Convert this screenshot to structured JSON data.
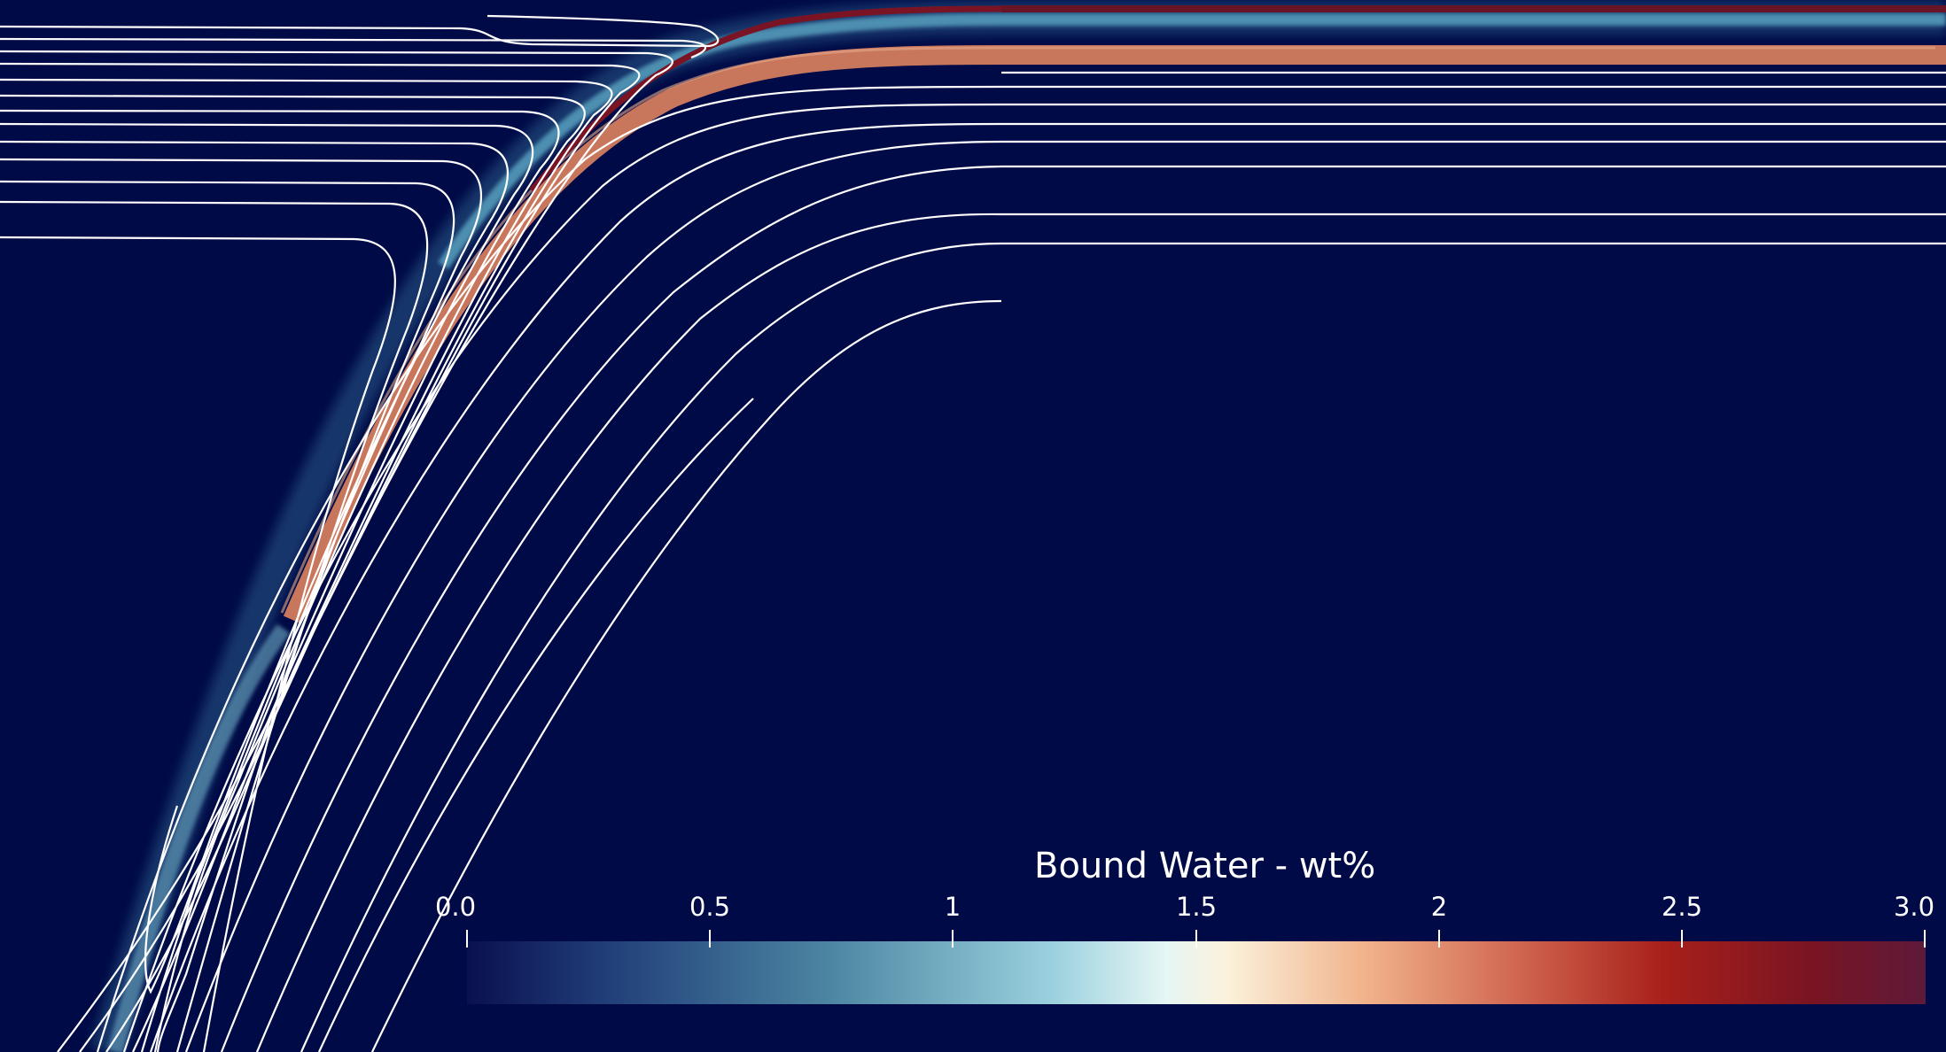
{
  "figure": {
    "background_color": "#000a46",
    "field_name": "Bound Water - wt%"
  },
  "colorbar": {
    "title": "Bound Water - wt%",
    "range": [
      0.0,
      3.0
    ],
    "ticks": [
      "0.0",
      "0.5",
      "1",
      "1.5",
      "2",
      "2.5",
      "3.0"
    ],
    "colormap_stops": [
      "#0a1050",
      "#22407a",
      "#4c86a2",
      "#9ad0de",
      "#e6f6f4",
      "#fbf2dc",
      "#f0b088",
      "#d06650",
      "#a8201a",
      "#7a1422",
      "#5e1a3a"
    ]
  }
}
